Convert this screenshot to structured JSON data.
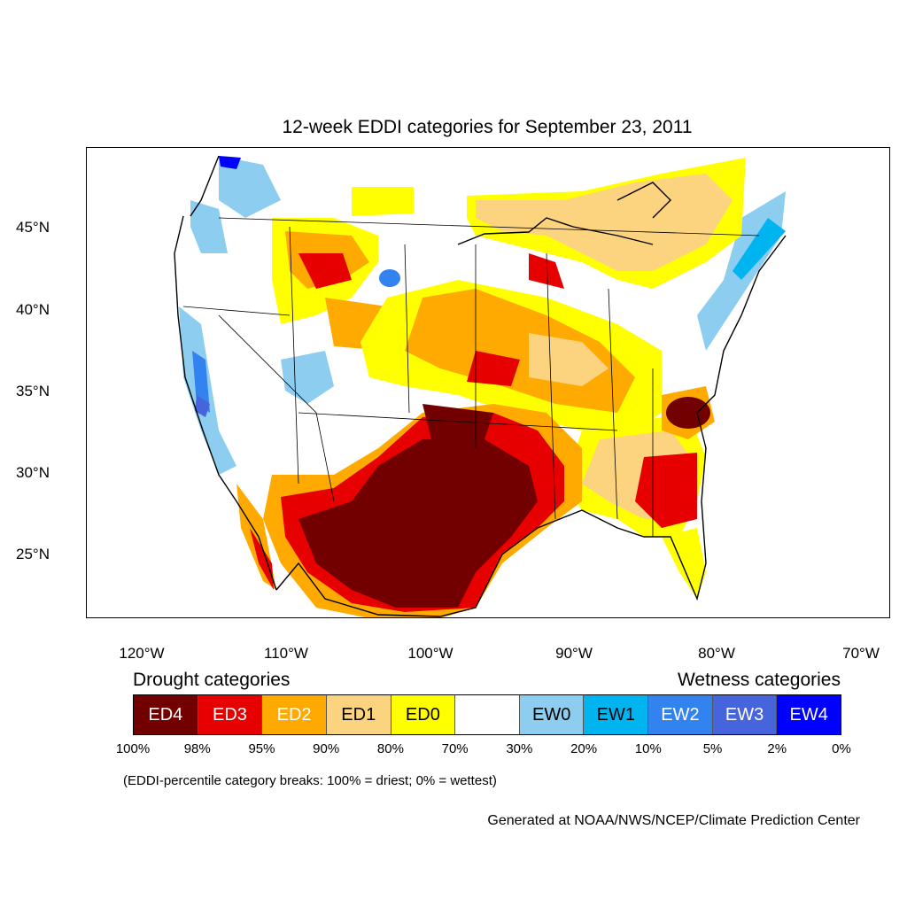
{
  "title": "12-week EDDI categories for September 23, 2011",
  "lat_labels": [
    "45°N",
    "40°N",
    "35°N",
    "30°N",
    "25°N"
  ],
  "lon_labels": [
    "120°W",
    "110°W",
    "100°W",
    "90°W",
    "80°W",
    "70°W"
  ],
  "legend": {
    "drought_heading": "Drought categories",
    "wetness_heading": "Wetness categories",
    "categories": [
      {
        "label": "ED4",
        "color": "#730000",
        "text_color": "#ffffff"
      },
      {
        "label": "ED3",
        "color": "#e60000",
        "text_color": "#ffffff"
      },
      {
        "label": "ED2",
        "color": "#ffaa00",
        "text_color": "#ffffff"
      },
      {
        "label": "ED1",
        "color": "#fcd37f",
        "text_color": "#000000"
      },
      {
        "label": "ED0",
        "color": "#ffff00",
        "text_color": "#000000"
      },
      {
        "label": "",
        "color": "#ffffff",
        "text_color": "#000000"
      },
      {
        "label": "EW0",
        "color": "#8ccdf0",
        "text_color": "#000000"
      },
      {
        "label": "EW1",
        "color": "#00b4f0",
        "text_color": "#000000"
      },
      {
        "label": "EW2",
        "color": "#3282f0",
        "text_color": "#ffffff"
      },
      {
        "label": "EW3",
        "color": "#4664dc",
        "text_color": "#ffffff"
      },
      {
        "label": "EW4",
        "color": "#0000ff",
        "text_color": "#ffffff"
      }
    ],
    "breaks": [
      "100%",
      "98%",
      "95%",
      "90%",
      "80%",
      "70%",
      "30%",
      "20%",
      "10%",
      "5%",
      "2%",
      "0%"
    ]
  },
  "note": "(EDDI-percentile category breaks: 100% = driest; 0% = wettest)",
  "credit": "Generated at NOAA/NWS/NCEP/Climate Prediction Center"
}
